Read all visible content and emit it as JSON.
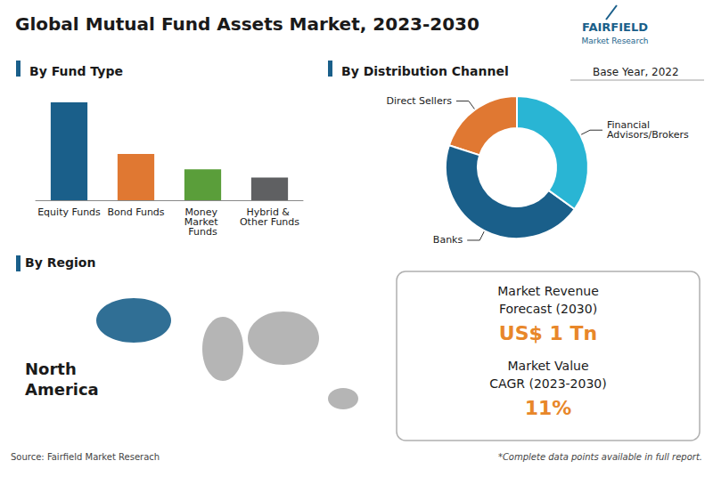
{
  "title": "Global Mutual Fund Assets Market, 2023-2030",
  "chart_data": [
    {
      "type": "bar",
      "title": "By Fund Type",
      "categories": [
        "Equity Funds",
        "Bond Funds",
        "Money Market Funds",
        "Hybrid & Other Funds"
      ],
      "values": [
        0.95,
        0.45,
        0.3,
        0.22
      ],
      "colors": [
        "#1a5f8a",
        "#e07832",
        "#5a9e3a",
        "#5f6062"
      ],
      "ylim": [
        0,
        1.08
      ],
      "tick_labels": "x",
      "grid": false
    },
    {
      "type": "pie",
      "title": "By Distribution Channel",
      "subtitle": "Base Year, 2022",
      "categories": [
        "Direct Sellers",
        "Banks",
        "Financial\nAdvisors/Brokers"
      ],
      "values": [
        20,
        45,
        35
      ],
      "colors": [
        "#e07832",
        "#1a5f8a",
        "#29b5d4"
      ]
    }
  ],
  "annotations": [
    "FAIRFIELD",
    "Market Research",
    "By Region",
    "North",
    "America",
    "Market Revenue",
    "Forecast (2030)",
    "US$ 1 Tn",
    "Market Value",
    "CAGR (2023-2030)",
    "11%",
    "Source: Fairfield Market Reserach",
    "*Complete data points available in full report."
  ]
}
